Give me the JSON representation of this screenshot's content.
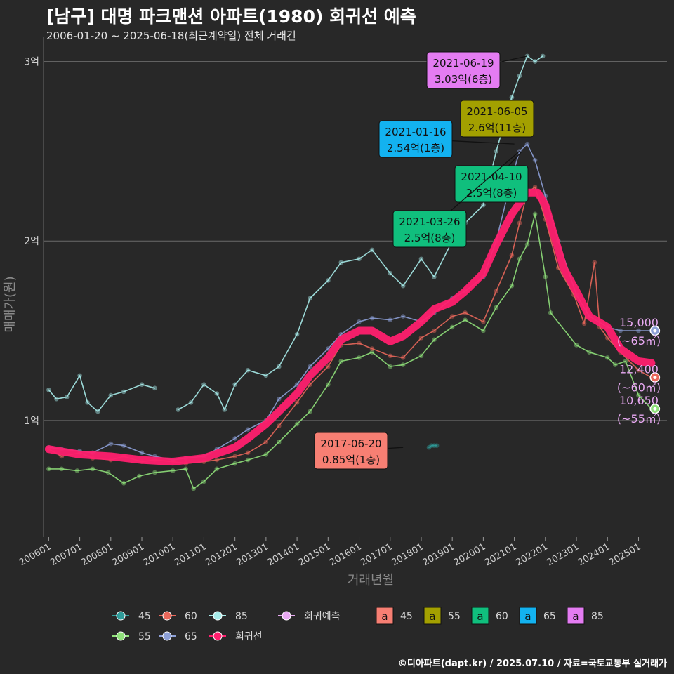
{
  "header": {
    "title": "[남구] 대명 파크맨션 아파트(1980) 회귀선 예측",
    "subtitle": "2006-01-20 ~ 2025-06-18(최근계약일) 전체 거래건"
  },
  "footer": {
    "credit": "©디아파트(dapt.kr) / 2025.07.10 / 자료=국토교통부 실거래가"
  },
  "colors": {
    "background": "#282828",
    "grid": "#6a6a6a",
    "s45": "#2f9c9a",
    "s55": "#8fe07a",
    "s60": "#e9675a",
    "s65": "#8c9fd6",
    "s85": "#a7ecea",
    "regression": "#ff1f6e",
    "forecast": "#e8a9f2",
    "label45": "#f77f73",
    "label55": "#a3a000",
    "label60": "#10bf7d",
    "label65": "#13b2f0",
    "label85": "#e47cf2"
  },
  "chart_data": {
    "type": "line",
    "title": "[남구] 대명 파크맨션 아파트(1980) 회귀선 예측",
    "xlabel": "거래년월",
    "ylabel": "매매가(원)",
    "x_range": [
      "2005-11",
      "2025-12"
    ],
    "ylim": [
      0.35,
      3.1
    ],
    "y_ticks": [
      {
        "value": 1,
        "label": "1억"
      },
      {
        "value": 2,
        "label": "2억"
      },
      {
        "value": 3,
        "label": "3억"
      }
    ],
    "x_ticks": [
      "200601",
      "200701",
      "200801",
      "200901",
      "201001",
      "201101",
      "201201",
      "201301",
      "201401",
      "201501",
      "201601",
      "201701",
      "201801",
      "201901",
      "202001",
      "202101",
      "202201",
      "202301",
      "202401",
      "202501"
    ],
    "grid": true,
    "series": [
      {
        "name": "45",
        "key": "s45",
        "points": [
          [
            "2018-04",
            0.85
          ],
          [
            "2018-05",
            0.86
          ],
          [
            "2018-06",
            0.86
          ],
          [
            "2018-07",
            0.86
          ]
        ]
      },
      {
        "name": "55",
        "key": "s55",
        "points": [
          [
            "2006-01",
            0.73
          ],
          [
            "2006-06",
            0.73
          ],
          [
            "2006-12",
            0.72
          ],
          [
            "2007-06",
            0.73
          ],
          [
            "2007-12",
            0.71
          ],
          [
            "2008-06",
            0.65
          ],
          [
            "2008-12",
            0.69
          ],
          [
            "2009-06",
            0.71
          ],
          [
            "2010-01",
            0.72
          ],
          [
            "2010-06",
            0.73
          ],
          [
            "2010-09",
            0.62
          ],
          [
            "2011-01",
            0.66
          ],
          [
            "2011-06",
            0.73
          ],
          [
            "2012-01",
            0.76
          ],
          [
            "2012-06",
            0.78
          ],
          [
            "2013-01",
            0.81
          ],
          [
            "2013-06",
            0.88
          ],
          [
            "2014-01",
            0.98
          ],
          [
            "2014-06",
            1.05
          ],
          [
            "2015-01",
            1.2
          ],
          [
            "2015-06",
            1.33
          ],
          [
            "2016-01",
            1.35
          ],
          [
            "2016-06",
            1.38
          ],
          [
            "2017-01",
            1.3
          ],
          [
            "2017-06",
            1.31
          ],
          [
            "2018-01",
            1.36
          ],
          [
            "2018-06",
            1.45
          ],
          [
            "2019-01",
            1.52
          ],
          [
            "2019-06",
            1.56
          ],
          [
            "2020-01",
            1.5
          ],
          [
            "2020-06",
            1.63
          ],
          [
            "2020-12",
            1.75
          ],
          [
            "2021-03",
            1.9
          ],
          [
            "2021-06",
            1.98
          ],
          [
            "2021-09",
            2.15
          ],
          [
            "2022-01",
            1.8
          ],
          [
            "2022-03",
            1.6
          ],
          [
            "2023-01",
            1.42
          ],
          [
            "2023-06",
            1.38
          ],
          [
            "2024-01",
            1.35
          ],
          [
            "2024-04",
            1.31
          ],
          [
            "2024-08",
            1.33
          ],
          [
            "2025-01",
            1.14
          ],
          [
            "2025-06",
            1.065
          ]
        ]
      },
      {
        "name": "60",
        "key": "s60",
        "points": [
          [
            "2006-01",
            0.84
          ],
          [
            "2006-06",
            0.8
          ],
          [
            "2007-01",
            0.82
          ],
          [
            "2007-06",
            0.79
          ],
          [
            "2008-01",
            0.78
          ],
          [
            "2008-06",
            0.8
          ],
          [
            "2009-01",
            0.77
          ],
          [
            "2009-06",
            0.78
          ],
          [
            "2010-01",
            0.77
          ],
          [
            "2010-06",
            0.76
          ],
          [
            "2011-01",
            0.77
          ],
          [
            "2011-06",
            0.78
          ],
          [
            "2012-01",
            0.8
          ],
          [
            "2012-06",
            0.82
          ],
          [
            "2013-01",
            0.88
          ],
          [
            "2013-06",
            0.97
          ],
          [
            "2014-01",
            1.1
          ],
          [
            "2014-06",
            1.2
          ],
          [
            "2015-01",
            1.3
          ],
          [
            "2015-06",
            1.42
          ],
          [
            "2016-01",
            1.43
          ],
          [
            "2016-06",
            1.4
          ],
          [
            "2017-01",
            1.36
          ],
          [
            "2017-06",
            1.35
          ],
          [
            "2018-01",
            1.46
          ],
          [
            "2018-06",
            1.5
          ],
          [
            "2019-01",
            1.58
          ],
          [
            "2019-06",
            1.6
          ],
          [
            "2020-01",
            1.55
          ],
          [
            "2020-06",
            1.72
          ],
          [
            "2020-12",
            1.92
          ],
          [
            "2021-03",
            2.1
          ],
          [
            "2021-06",
            2.27
          ],
          [
            "2021-09",
            2.3
          ],
          [
            "2022-01",
            2.12
          ],
          [
            "2022-06",
            1.85
          ],
          [
            "2022-12",
            1.7
          ],
          [
            "2023-04",
            1.54
          ],
          [
            "2023-08",
            1.88
          ],
          [
            "2023-10",
            1.52
          ],
          [
            "2024-01",
            1.46
          ],
          [
            "2024-06",
            1.38
          ],
          [
            "2025-01",
            1.28
          ],
          [
            "2025-06",
            1.24
          ]
        ]
      },
      {
        "name": "65",
        "key": "s65",
        "points": [
          [
            "2006-01",
            0.85
          ],
          [
            "2006-06",
            0.84
          ],
          [
            "2007-01",
            0.83
          ],
          [
            "2007-06",
            0.82
          ],
          [
            "2008-01",
            0.87
          ],
          [
            "2008-06",
            0.86
          ],
          [
            "2009-01",
            0.82
          ],
          [
            "2009-06",
            0.8
          ],
          [
            "2010-01",
            0.78
          ],
          [
            "2010-06",
            0.79
          ],
          [
            "2011-01",
            0.8
          ],
          [
            "2011-06",
            0.84
          ],
          [
            "2012-01",
            0.9
          ],
          [
            "2012-06",
            0.95
          ],
          [
            "2013-01",
            1.0
          ],
          [
            "2013-06",
            1.12
          ],
          [
            "2014-01",
            1.2
          ],
          [
            "2014-06",
            1.3
          ],
          [
            "2015-01",
            1.4
          ],
          [
            "2015-06",
            1.48
          ],
          [
            "2016-01",
            1.55
          ],
          [
            "2016-06",
            1.57
          ],
          [
            "2017-01",
            1.56
          ],
          [
            "2017-06",
            1.58
          ],
          [
            "2018-01",
            1.55
          ],
          [
            "2018-06",
            1.6
          ],
          [
            "2019-01",
            1.68
          ],
          [
            "2019-06",
            1.72
          ],
          [
            "2020-01",
            1.8
          ],
          [
            "2020-06",
            2.0
          ],
          [
            "2020-12",
            2.35
          ],
          [
            "2021-03",
            2.5
          ],
          [
            "2021-06",
            2.54
          ],
          [
            "2021-09",
            2.45
          ],
          [
            "2022-01",
            2.25
          ],
          [
            "2022-06",
            2.0
          ],
          [
            "2023-01",
            1.7
          ],
          [
            "2023-06",
            1.58
          ],
          [
            "2024-01",
            1.52
          ],
          [
            "2024-06",
            1.5
          ],
          [
            "2025-01",
            1.5
          ],
          [
            "2025-06",
            1.5
          ]
        ]
      },
      {
        "name": "85",
        "key": "s85",
        "points": [
          [
            "2006-01",
            1.17
          ],
          [
            "2006-04",
            1.12
          ],
          [
            "2006-08",
            1.13
          ],
          [
            "2007-01",
            1.25
          ],
          [
            "2007-04",
            1.1
          ],
          [
            "2007-08",
            1.05
          ],
          [
            "2008-01",
            1.14
          ],
          [
            "2008-06",
            1.16
          ],
          [
            "2009-01",
            1.2
          ],
          [
            "2009-06",
            1.18
          ],
          [
            "2009-12",
            null
          ],
          [
            "2010-03",
            1.06
          ],
          [
            "2010-08",
            1.1
          ],
          [
            "2011-01",
            1.2
          ],
          [
            "2011-06",
            1.15
          ],
          [
            "2011-09",
            1.06
          ],
          [
            "2012-01",
            1.2
          ],
          [
            "2012-06",
            1.28
          ],
          [
            "2013-01",
            1.25
          ],
          [
            "2013-06",
            1.3
          ],
          [
            "2014-01",
            1.48
          ],
          [
            "2014-06",
            1.68
          ],
          [
            "2015-01",
            1.78
          ],
          [
            "2015-06",
            1.88
          ],
          [
            "2016-01",
            1.9
          ],
          [
            "2016-06",
            1.95
          ],
          [
            "2017-01",
            1.82
          ],
          [
            "2017-06",
            1.75
          ],
          [
            "2018-01",
            1.9
          ],
          [
            "2018-06",
            1.8
          ],
          [
            "2019-01",
            2.0
          ],
          [
            "2019-06",
            2.1
          ],
          [
            "2020-01",
            2.2
          ],
          [
            "2020-06",
            2.5
          ],
          [
            "2020-12",
            2.8
          ],
          [
            "2021-03",
            2.92
          ],
          [
            "2021-06",
            3.03
          ],
          [
            "2021-09",
            3.0
          ],
          [
            "2021-12",
            3.03
          ]
        ]
      },
      {
        "name": "회귀선",
        "key": "regression",
        "points": [
          [
            "2006-01",
            0.84
          ],
          [
            "2007-01",
            0.81
          ],
          [
            "2008-01",
            0.8
          ],
          [
            "2009-01",
            0.78
          ],
          [
            "2010-01",
            0.77
          ],
          [
            "2011-01",
            0.79
          ],
          [
            "2012-01",
            0.85
          ],
          [
            "2012-06",
            0.9
          ],
          [
            "2013-01",
            0.98
          ],
          [
            "2013-06",
            1.05
          ],
          [
            "2014-01",
            1.15
          ],
          [
            "2014-06",
            1.25
          ],
          [
            "2015-01",
            1.35
          ],
          [
            "2015-06",
            1.45
          ],
          [
            "2016-01",
            1.5
          ],
          [
            "2016-06",
            1.5
          ],
          [
            "2017-01",
            1.44
          ],
          [
            "2017-06",
            1.47
          ],
          [
            "2018-01",
            1.55
          ],
          [
            "2018-06",
            1.62
          ],
          [
            "2019-01",
            1.66
          ],
          [
            "2019-06",
            1.72
          ],
          [
            "2020-01",
            1.82
          ],
          [
            "2020-06",
            1.98
          ],
          [
            "2020-12",
            2.15
          ],
          [
            "2021-06",
            2.27
          ],
          [
            "2021-10",
            2.27
          ],
          [
            "2022-01",
            2.2
          ],
          [
            "2022-04",
            2.05
          ],
          [
            "2022-08",
            1.85
          ],
          [
            "2023-01",
            1.72
          ],
          [
            "2023-06",
            1.58
          ],
          [
            "2024-01",
            1.52
          ],
          [
            "2024-06",
            1.4
          ],
          [
            "2025-01",
            1.33
          ],
          [
            "2025-06",
            1.32
          ]
        ]
      }
    ],
    "annotations": [
      {
        "date": "2021-06-19",
        "value": "3.03억(6층)",
        "series": "85",
        "at": [
          "2021-06",
          3.03
        ],
        "color_key": "label85"
      },
      {
        "date": "2021-06-05",
        "value": "2.6억(11층)",
        "series": "55",
        "at": [
          "2021-06",
          2.6
        ],
        "color_key": "label55"
      },
      {
        "date": "2021-01-16",
        "value": "2.54억(1층)",
        "series": "65",
        "at": [
          "2021-01",
          2.54
        ],
        "color_key": "label65"
      },
      {
        "date": "2021-04-10",
        "value": "2.5억(8층)",
        "series": "60",
        "at": [
          "2021-04",
          2.5
        ],
        "color_key": "label60"
      },
      {
        "date": "2021-03-26",
        "value": "2.5억(8층)",
        "series": "60",
        "at": [
          "2021-03",
          2.5
        ],
        "color_key": "label60"
      },
      {
        "date": "2017-06-20",
        "value": "0.85억(1층)",
        "series": "45",
        "at": [
          "2017-06",
          0.85
        ],
        "color_key": "label45"
      }
    ],
    "forecast_labels": [
      {
        "series": "65",
        "price": "15,000",
        "area": "(~65㎡)",
        "value": 1.5
      },
      {
        "series": "60",
        "price": "12,400",
        "area": "(~60㎡)",
        "value": 1.24
      },
      {
        "series": "55",
        "price": "10,650",
        "area": "(~55㎡)",
        "value": 1.065
      }
    ],
    "legend": {
      "placement": "bottom",
      "lines": [
        {
          "label": "45",
          "key": "s45"
        },
        {
          "label": "60",
          "key": "s60"
        },
        {
          "label": "85",
          "key": "s85"
        },
        {
          "label": "55",
          "key": "s55"
        },
        {
          "label": "65",
          "key": "s65"
        },
        {
          "label": "회귀선",
          "key": "regression"
        },
        {
          "label": "회귀예측",
          "key": "forecast"
        }
      ],
      "boxes": [
        {
          "label": "45",
          "key": "label45"
        },
        {
          "label": "55",
          "key": "label55"
        },
        {
          "label": "60",
          "key": "label60"
        },
        {
          "label": "65",
          "key": "label65"
        },
        {
          "label": "85",
          "key": "label85"
        }
      ],
      "box_glyph": "a"
    }
  }
}
